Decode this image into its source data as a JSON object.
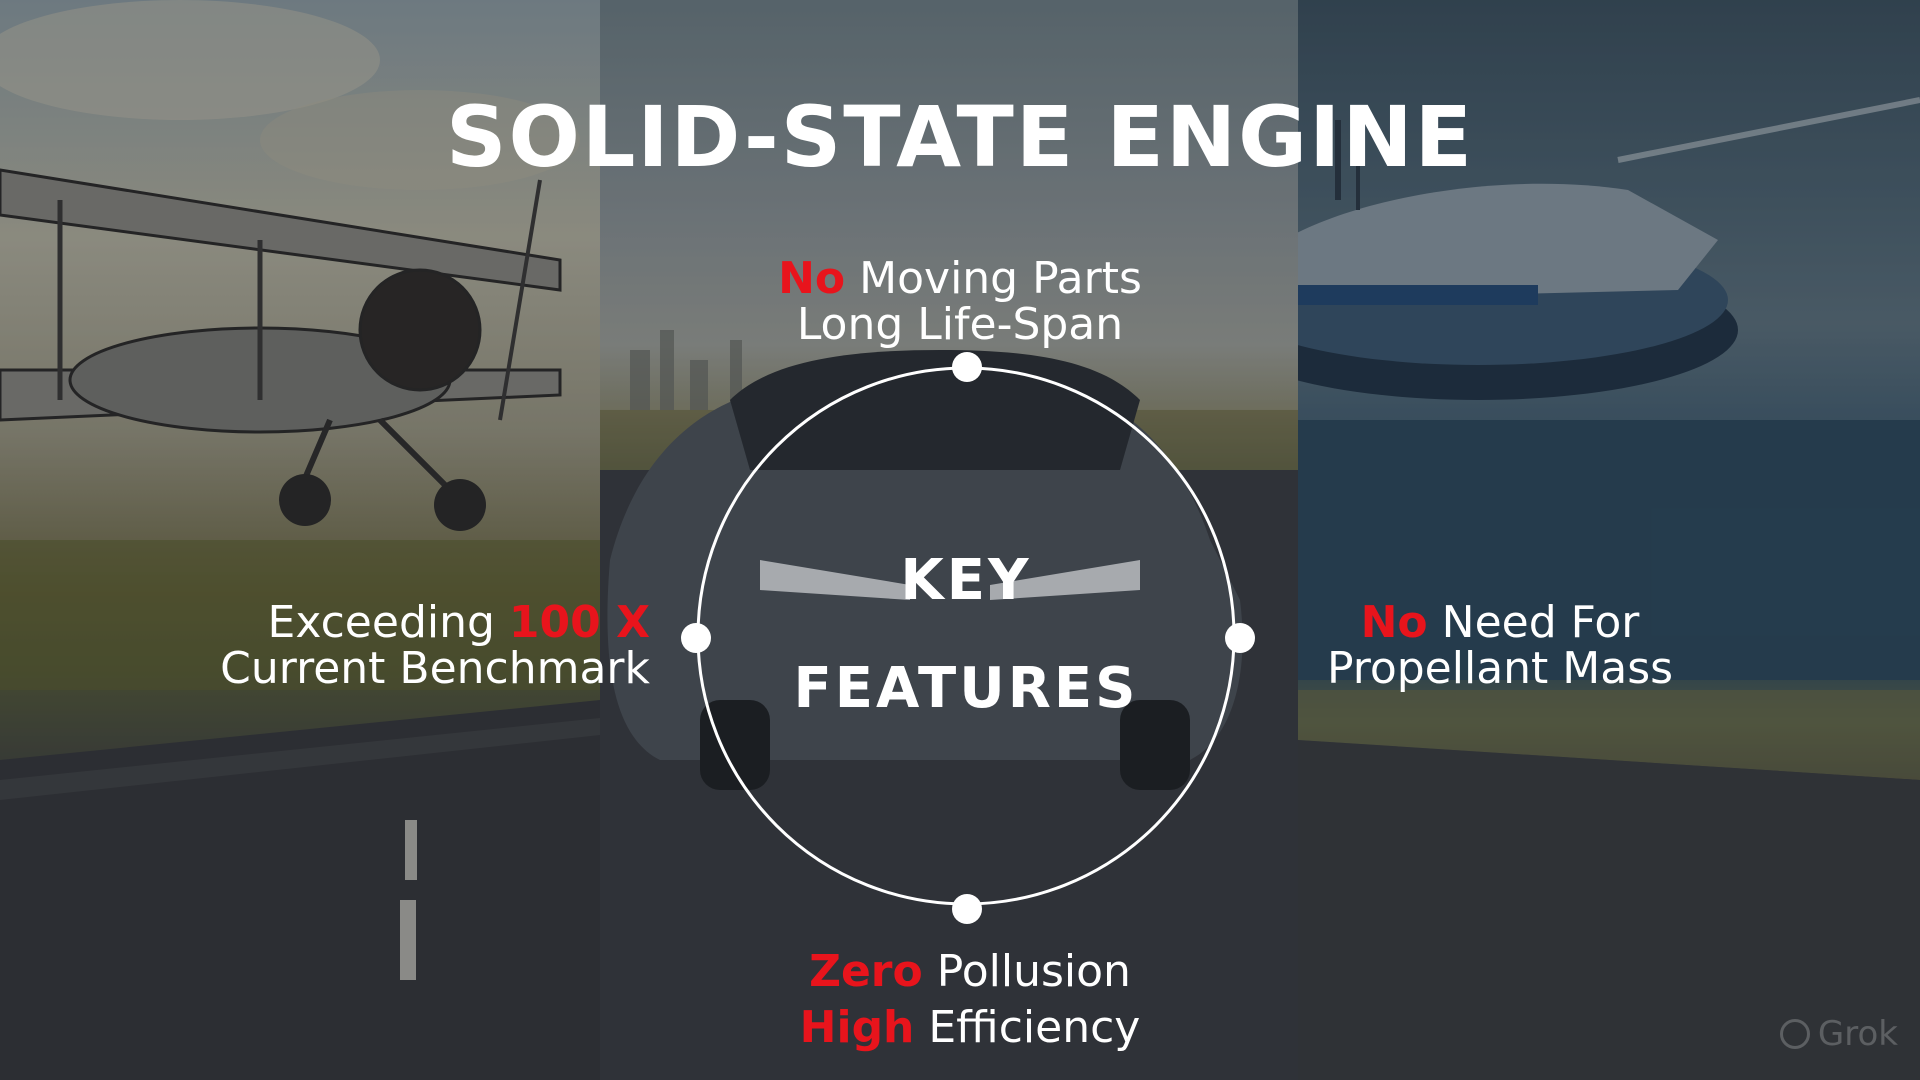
{
  "slide": {
    "title": "SOLID-STATE ENGINE",
    "center": {
      "line1": "KEY",
      "line2": "FEATURES"
    },
    "features": {
      "top": {
        "line1_highlight": "No",
        "line1_rest": " Moving Parts",
        "line2": "Long Life-Span"
      },
      "left": {
        "line1_start": "Exceeding ",
        "line1_highlight": "100 X",
        "line2": "Current Benchmark"
      },
      "right": {
        "line1_highlight": "No",
        "line1_rest": " Need For",
        "line2": "Propellant Mass"
      },
      "bottom": {
        "line1_highlight": "Zero",
        "line1_rest": " Pollusion",
        "line2_highlight": "High",
        "line2_rest": " Efficiency"
      }
    },
    "watermark": "Grok"
  },
  "colors": {
    "highlight": "#e8141c",
    "text": "#ffffff"
  },
  "images": {
    "left": "biplane over countryside road",
    "middle": "futuristic dark sports car on road",
    "right": "futuristic flying ship over the sea"
  }
}
